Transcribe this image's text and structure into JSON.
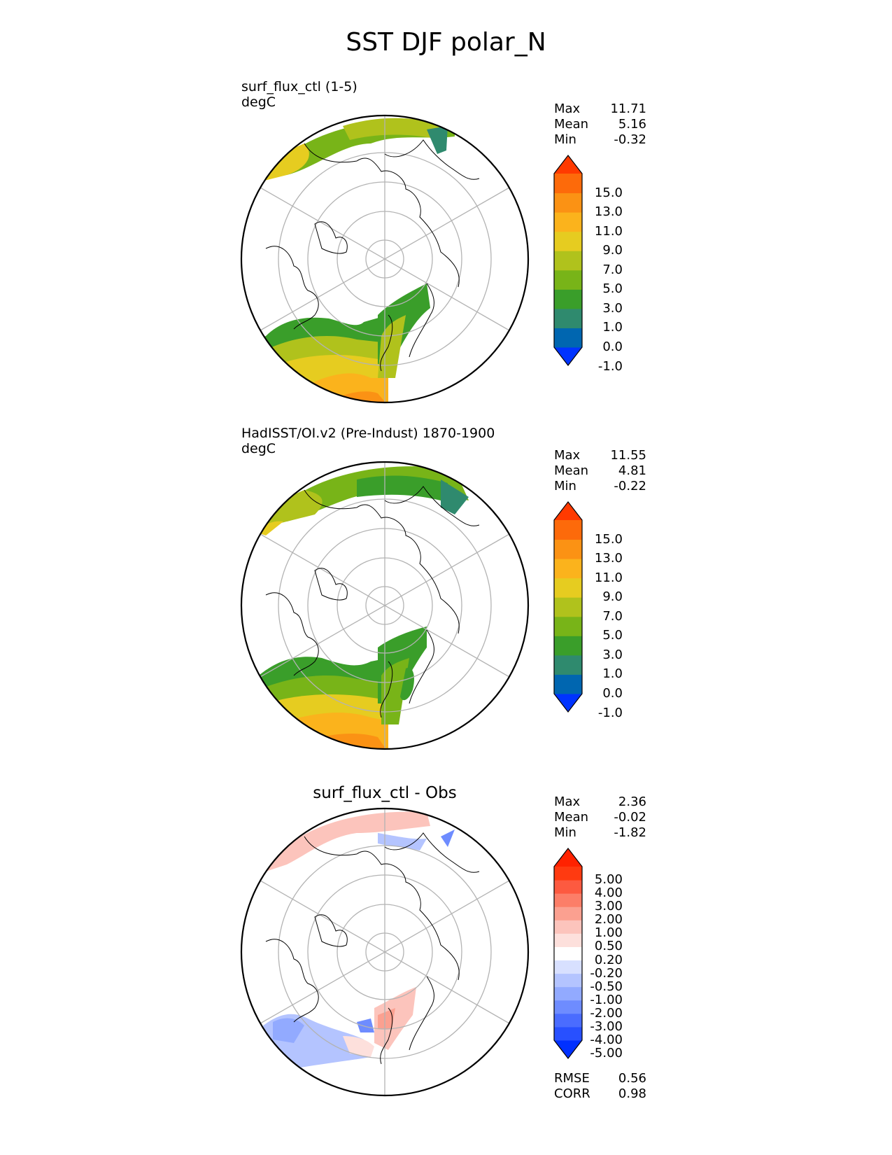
{
  "title": "SST DJF polar_N",
  "panels": [
    {
      "title": "surf_flux_ctl (1-5)",
      "units": "degC",
      "stats": [
        {
          "label": "Max",
          "value": "11.71"
        },
        {
          "label": "Mean",
          "value": "5.16"
        },
        {
          "label": "Min",
          "value": "-0.32"
        }
      ],
      "colorbar": {
        "labels": [
          "15.0",
          "13.0",
          "11.0",
          "9.0",
          "7.0",
          "5.0",
          "3.0",
          "1.0",
          "0.0",
          "-1.0"
        ],
        "colors": [
          "#0033ff",
          "#0066b0",
          "#2f8a6e",
          "#3a9e2a",
          "#78b418",
          "#b0c21c",
          "#e6cc20",
          "#fbb31c",
          "#fb9214",
          "#fd6a0a",
          "#ff3a00"
        ]
      }
    },
    {
      "title": "HadISST/OI.v2 (Pre-Indust) 1870-1900",
      "units": "degC",
      "stats": [
        {
          "label": "Max",
          "value": "11.55"
        },
        {
          "label": "Mean",
          "value": "4.81"
        },
        {
          "label": "Min",
          "value": "-0.22"
        }
      ],
      "colorbar": {
        "labels": [
          "15.0",
          "13.0",
          "11.0",
          "9.0",
          "7.0",
          "5.0",
          "3.0",
          "1.0",
          "0.0",
          "-1.0"
        ],
        "colors": [
          "#0033ff",
          "#0066b0",
          "#2f8a6e",
          "#3a9e2a",
          "#78b418",
          "#b0c21c",
          "#e6cc20",
          "#fbb31c",
          "#fb9214",
          "#fd6a0a",
          "#ff3a00"
        ]
      }
    },
    {
      "title": "surf_flux_ctl - Obs",
      "units": "",
      "stats": [
        {
          "label": "Max",
          "value": "2.36"
        },
        {
          "label": "Mean",
          "value": "-0.02"
        },
        {
          "label": "Min",
          "value": "-1.82"
        }
      ],
      "extra_stats": [
        {
          "label": "RMSE",
          "value": "0.56"
        },
        {
          "label": "CORR",
          "value": "0.98"
        }
      ],
      "colorbar": {
        "labels": [
          "5.00",
          "4.00",
          "3.00",
          "2.00",
          "1.00",
          "0.50",
          "0.20",
          "-0.20",
          "-0.50",
          "-1.00",
          "-2.00",
          "-3.00",
          "-4.00",
          "-5.00"
        ],
        "colors": [
          "#0030ff",
          "#2850ff",
          "#4a6cff",
          "#6e8cff",
          "#92aaff",
          "#b4c4ff",
          "#d8e0ff",
          "#ffffff",
          "#fde0dc",
          "#fcc4bc",
          "#fba090",
          "#fc7e68",
          "#fd5a40",
          "#ff3a10",
          "#ff2200"
        ]
      }
    }
  ]
}
